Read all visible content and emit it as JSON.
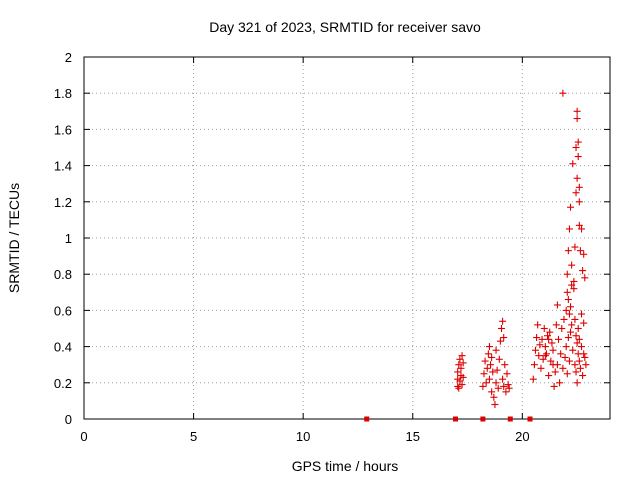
{
  "chart_data": {
    "type": "scatter",
    "title": "Day 321 of 2023, SRMTID for receiver savo",
    "xlabel": "GPS time / hours",
    "ylabel": "SRMTID / TECUs",
    "xlim": [
      0,
      24
    ],
    "ylim": [
      0,
      2
    ],
    "xticks": [
      0,
      5,
      10,
      15,
      20
    ],
    "xtick_labels": [
      "0",
      "5",
      "10",
      "15",
      "20"
    ],
    "yticks": [
      0,
      0.2,
      0.4,
      0.6,
      0.8,
      1,
      1.2,
      1.4,
      1.6,
      1.8,
      2
    ],
    "ytick_labels": [
      "0",
      "0.2",
      "0.4",
      "0.6",
      "0.8",
      "1",
      "1.2",
      "1.4",
      "1.6",
      "1.8",
      "2"
    ],
    "grid": true,
    "marker": "plus",
    "color": "#dd0000",
    "series": [
      {
        "name": "SRMTID",
        "x": [
          12.9,
          16.95,
          18.2,
          19.45,
          20.35,
          17.05,
          17.05,
          17.05,
          17.1,
          17.1,
          17.15,
          17.15,
          17.2,
          17.2,
          17.25,
          17.25,
          17.3,
          17.3,
          18.2,
          18.25,
          18.3,
          18.35,
          18.4,
          18.45,
          18.5,
          18.5,
          18.55,
          18.6,
          18.6,
          18.65,
          18.7,
          18.75,
          18.8,
          18.8,
          18.85,
          18.9,
          18.95,
          19.0,
          19.05,
          19.1,
          19.1,
          19.15,
          19.15,
          19.2,
          19.25,
          19.3,
          19.35,
          19.4,
          20.5,
          20.55,
          20.6,
          20.65,
          20.7,
          20.75,
          20.8,
          20.85,
          20.9,
          20.95,
          21.0,
          21.05,
          21.1,
          21.15,
          21.2,
          21.25,
          21.3,
          21.35,
          21.4,
          21.45,
          21.5,
          21.55,
          21.6,
          21.65,
          21.7,
          21.75,
          21.8,
          21.85,
          21.9,
          21.95,
          22.0,
          22.0,
          22.05,
          22.05,
          22.1,
          22.1,
          22.15,
          22.15,
          22.2,
          22.2,
          22.25,
          22.3,
          22.35,
          22.4,
          22.4,
          22.45,
          22.45,
          22.5,
          22.5,
          22.55,
          22.55,
          22.6,
          22.6,
          22.65,
          22.7,
          22.75,
          22.8,
          22.85,
          22.9,
          22.05,
          22.1,
          22.15,
          22.2,
          22.25,
          22.3,
          22.35,
          22.4,
          22.45,
          22.45,
          22.5,
          22.5,
          22.55,
          22.55,
          22.6,
          22.6,
          22.65,
          22.7,
          22.75,
          22.8,
          22.85,
          21.05,
          21.2,
          21.4,
          21.6,
          21.85,
          22.25,
          22.5,
          22.6,
          22.7,
          22.8
        ],
        "y": [
          0,
          0,
          0,
          0,
          0,
          0.18,
          0.22,
          0.26,
          0.3,
          0.17,
          0.21,
          0.33,
          0.24,
          0.28,
          0.19,
          0.35,
          0.31,
          0.23,
          0.18,
          0.25,
          0.32,
          0.2,
          0.28,
          0.36,
          0.22,
          0.4,
          0.3,
          0.15,
          0.34,
          0.26,
          0.12,
          0.08,
          0.2,
          0.38,
          0.27,
          0.17,
          0.33,
          0.43,
          0.5,
          0.22,
          0.54,
          0.45,
          0.18,
          0.3,
          0.15,
          0.25,
          0.19,
          0.17,
          0.22,
          0.3,
          0.38,
          0.45,
          0.52,
          0.35,
          0.41,
          0.28,
          0.44,
          0.33,
          0.5,
          0.4,
          0.36,
          0.46,
          0.24,
          0.48,
          0.32,
          0.42,
          0.38,
          0.18,
          0.26,
          0.52,
          0.3,
          0.44,
          0.2,
          0.36,
          0.5,
          0.28,
          0.55,
          0.34,
          0.6,
          0.4,
          0.7,
          0.25,
          0.66,
          0.45,
          0.58,
          0.32,
          0.62,
          0.48,
          0.52,
          0.38,
          0.72,
          0.3,
          0.55,
          0.26,
          0.46,
          0.42,
          0.2,
          0.36,
          0.5,
          0.32,
          0.44,
          0.28,
          0.4,
          0.24,
          0.36,
          0.34,
          0.3,
          0.8,
          0.93,
          1.05,
          1.17,
          0.85,
          1.41,
          0.76,
          0.95,
          1.25,
          1.5,
          1.33,
          1.66,
          1.45,
          1.53,
          1.07,
          1.2,
          0.93,
          1.05,
          0.82,
          0.91,
          0.78,
          0.35,
          0.44,
          0.3,
          0.63,
          1.8,
          0.74,
          1.7,
          1.28,
          0.58,
          0.53
        ]
      }
    ]
  }
}
